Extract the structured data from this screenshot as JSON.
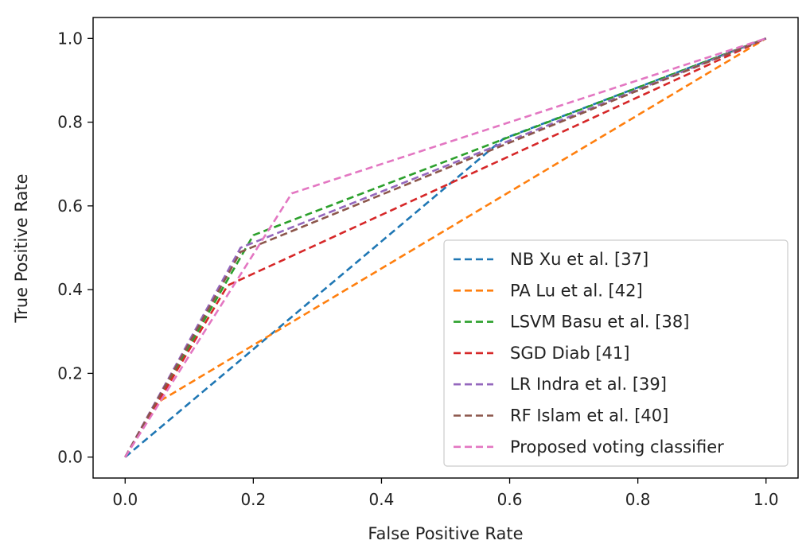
{
  "chart_data": {
    "type": "line",
    "title": "",
    "xlabel": "False Positive Rate",
    "ylabel": "True Positive Rate",
    "xlim": [
      -0.05,
      1.05
    ],
    "ylim": [
      -0.05,
      1.05
    ],
    "xticks": [
      "0.0",
      "0.2",
      "0.4",
      "0.6",
      "0.8",
      "1.0"
    ],
    "yticks": [
      "0.0",
      "0.2",
      "0.4",
      "0.6",
      "0.8",
      "1.0"
    ],
    "grid": false,
    "legend_position": "lower-right",
    "line_style": "dashed",
    "series": [
      {
        "name": "NB Xu et al. [37]",
        "color": "#1f77b4",
        "x": [
          0,
          0.59,
          1
        ],
        "y": [
          0,
          0.76,
          1
        ]
      },
      {
        "name": "PA Lu et al. [42]",
        "color": "#ff7f0e",
        "x": [
          0,
          0.05,
          1
        ],
        "y": [
          0,
          0.13,
          1
        ]
      },
      {
        "name": "LSVM Basu et al. [38]",
        "color": "#2ca02c",
        "x": [
          0,
          0.2,
          1
        ],
        "y": [
          0,
          0.53,
          1
        ]
      },
      {
        "name": "SGD Diab [41]",
        "color": "#d62728",
        "x": [
          0,
          0.16,
          1
        ],
        "y": [
          0,
          0.41,
          1
        ]
      },
      {
        "name": " LR Indra et al. [39]",
        "color": "#9467bd",
        "x": [
          0,
          0.18,
          1
        ],
        "y": [
          0,
          0.5,
          1
        ]
      },
      {
        "name": " RF Islam et al. [40]",
        "color": "#8c564b",
        "x": [
          0,
          0.18,
          1
        ],
        "y": [
          0,
          0.49,
          1
        ]
      },
      {
        "name": "Proposed voting classifier",
        "color": "#e377c2",
        "x": [
          0,
          0.26,
          1
        ],
        "y": [
          0,
          0.63,
          1
        ]
      }
    ]
  }
}
